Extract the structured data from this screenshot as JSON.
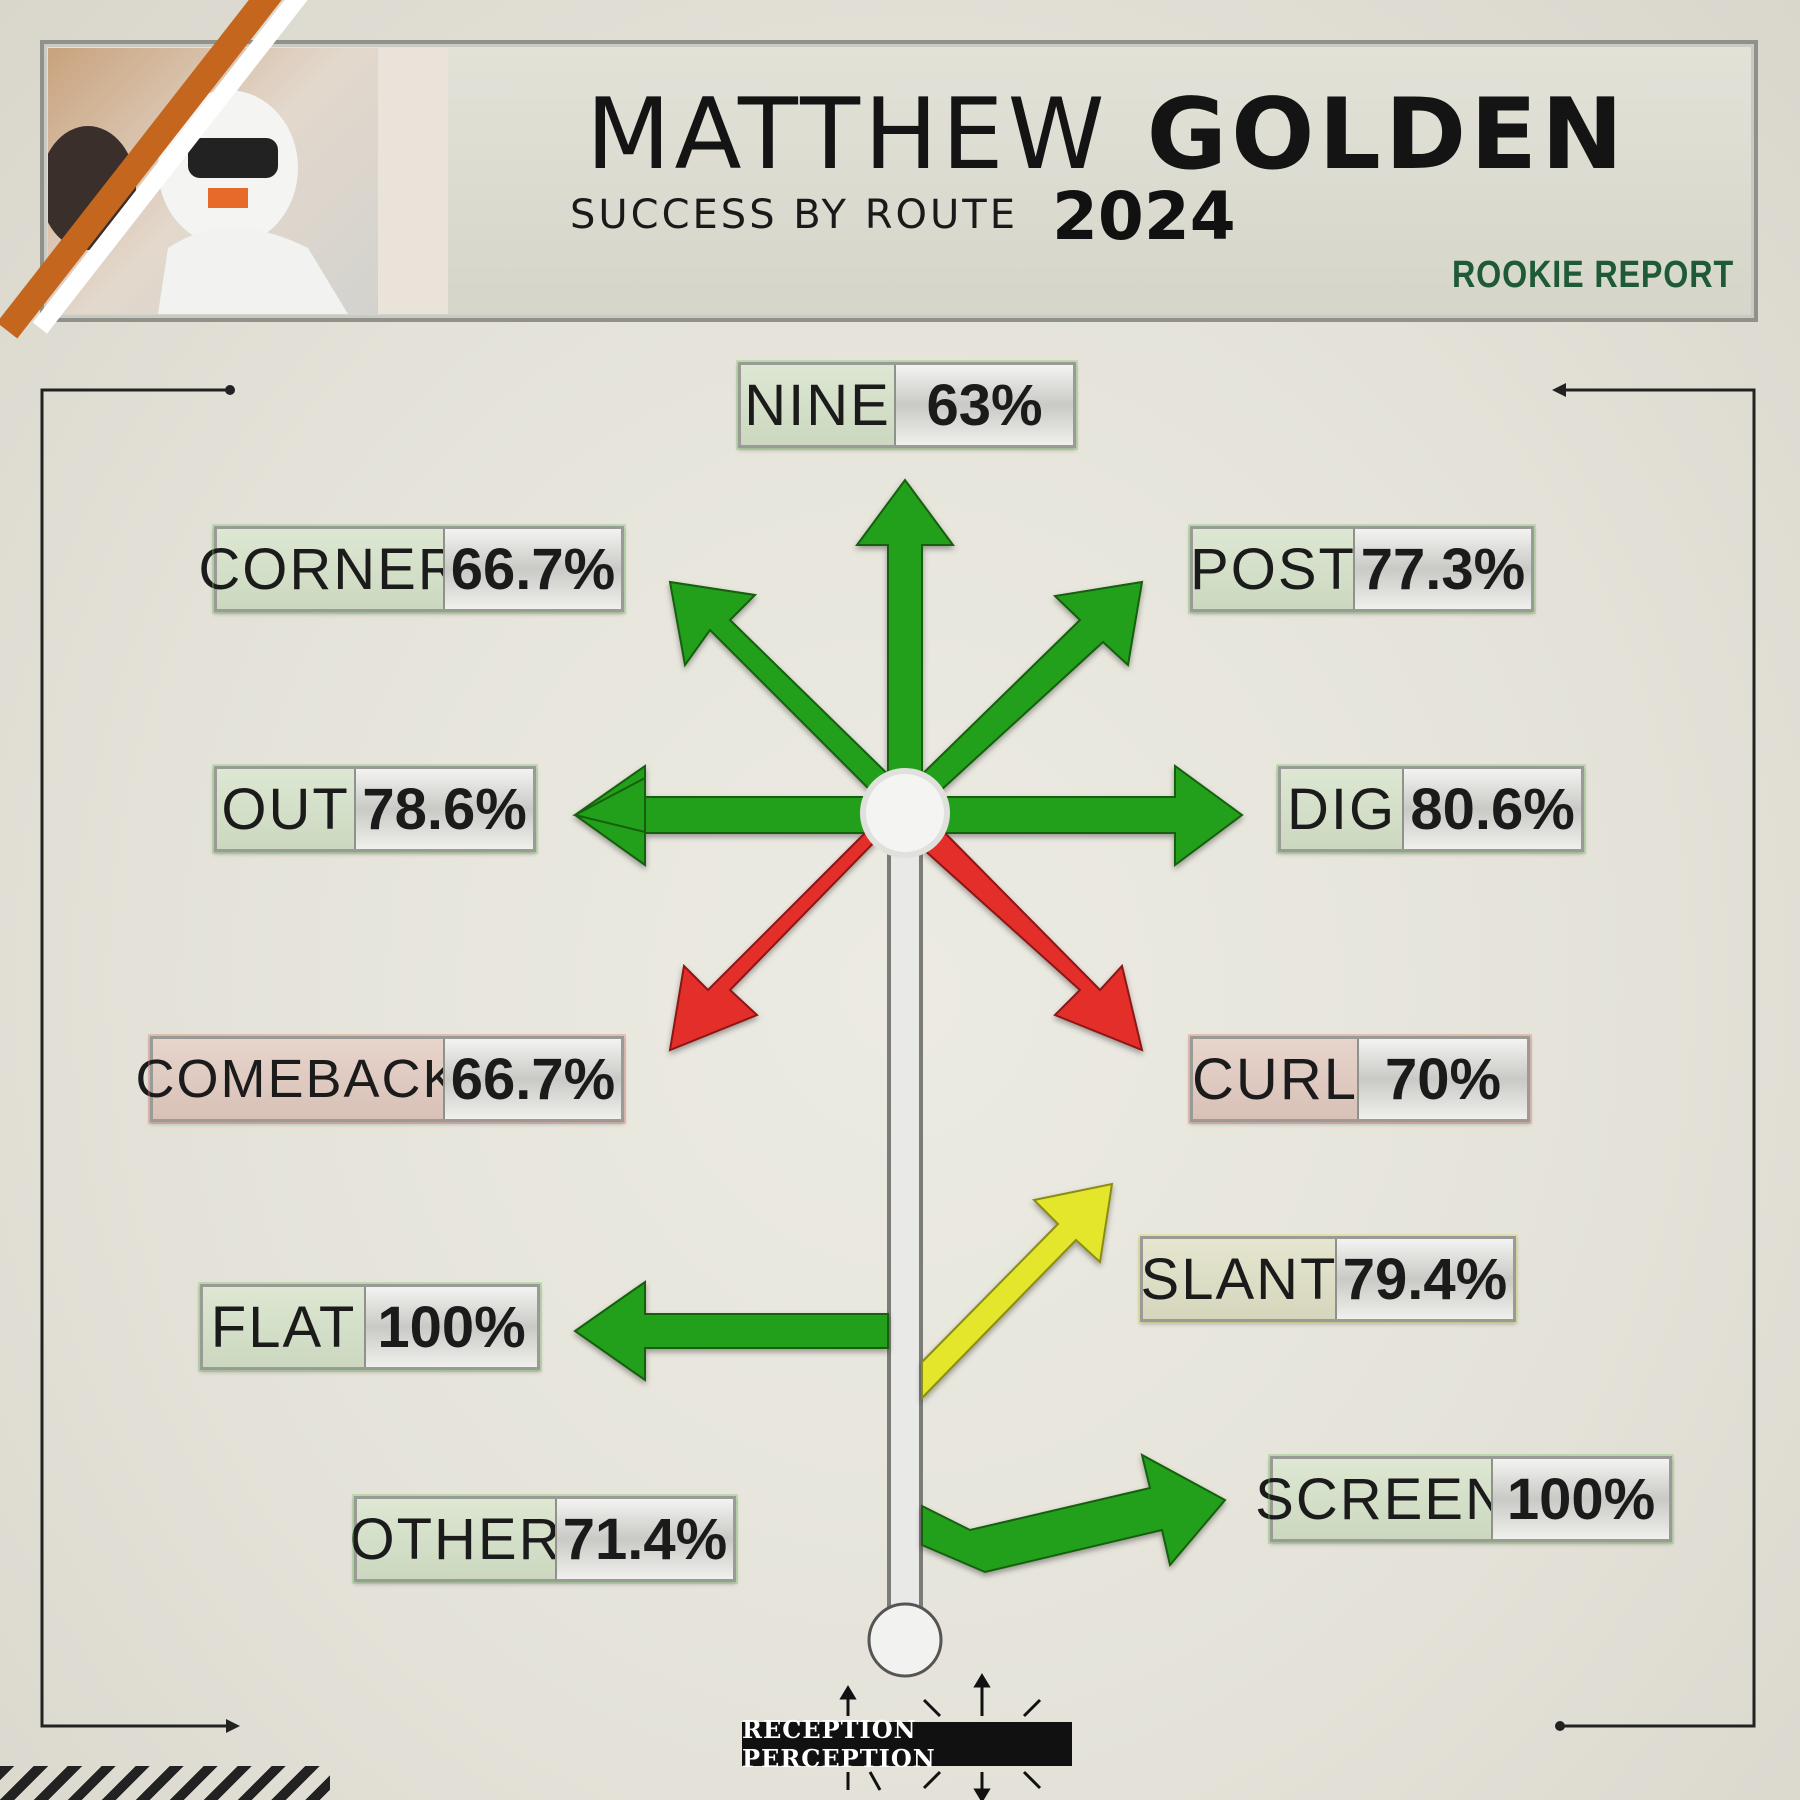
{
  "header": {
    "first_name": "MATTHEW",
    "last_name": "GOLDEN",
    "subtitle": "SUCCESS BY ROUTE",
    "year": "2024",
    "tag": "ROOKIE REPORT"
  },
  "routes": [
    {
      "id": "nine",
      "name": "NINE",
      "value": "63%",
      "status": "green"
    },
    {
      "id": "corner",
      "name": "CORNER",
      "value": "66.7%",
      "status": "green"
    },
    {
      "id": "post",
      "name": "POST",
      "value": "77.3%",
      "status": "green"
    },
    {
      "id": "out",
      "name": "OUT",
      "value": "78.6%",
      "status": "green"
    },
    {
      "id": "dig",
      "name": "DIG",
      "value": "80.6%",
      "status": "green"
    },
    {
      "id": "comeback",
      "name": "COMEBACK",
      "value": "66.7%",
      "status": "red"
    },
    {
      "id": "curl",
      "name": "CURL",
      "value": "70%",
      "status": "red"
    },
    {
      "id": "flat",
      "name": "FLAT",
      "value": "100%",
      "status": "green"
    },
    {
      "id": "slant",
      "name": "SLANT",
      "value": "79.4%",
      "status": "yellow"
    },
    {
      "id": "other",
      "name": "OTHER",
      "value": "71.4%",
      "status": "green"
    },
    {
      "id": "screen",
      "name": "SCREEN",
      "value": "100%",
      "status": "green"
    }
  ],
  "colors": {
    "green": "#22a01a",
    "red": "#e42f2a",
    "yellow": "#e3e62a",
    "stem": "#e8e8e6"
  },
  "brand": "RECEPTION PERCEPTION"
}
